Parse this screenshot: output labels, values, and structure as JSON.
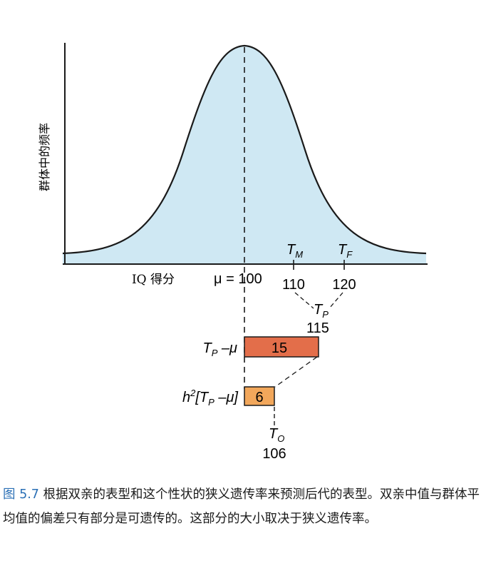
{
  "figure": {
    "y_axis_label": "群体中的频率",
    "x_axis_label": "IQ 得分",
    "mu_label": "μ = 100",
    "tm_label": "T",
    "tm_sub": "M",
    "tm_value": "110",
    "tf_label": "T",
    "tf_sub": "F",
    "tf_value": "120",
    "tp_label": "T",
    "tp_sub": "P",
    "tp_value": "115",
    "bar1_label_pre": "T",
    "bar1_label_sub": "P",
    "bar1_label_post": " –μ",
    "bar1_value": "15",
    "bar2_label_pre": "h",
    "bar2_label_sup": "2",
    "bar2_label_mid": "[T",
    "bar2_label_sub": "P",
    "bar2_label_post": " –μ]",
    "bar2_value": "6",
    "to_label": "T",
    "to_sub": "O",
    "to_value": "106",
    "colors": {
      "curve_fill": "#cfe8f3",
      "bar1": "#e36e4a",
      "bar2": "#f2a75b"
    }
  },
  "caption": {
    "fig_number": "图 5.7",
    "text": " 根据双亲的表型和这个性状的狭义遗传率来预测后代的表型。双亲中值与群体平均值的偏差只有部分是可遗传的。这部分的大小取决于狭义遗传率。"
  }
}
